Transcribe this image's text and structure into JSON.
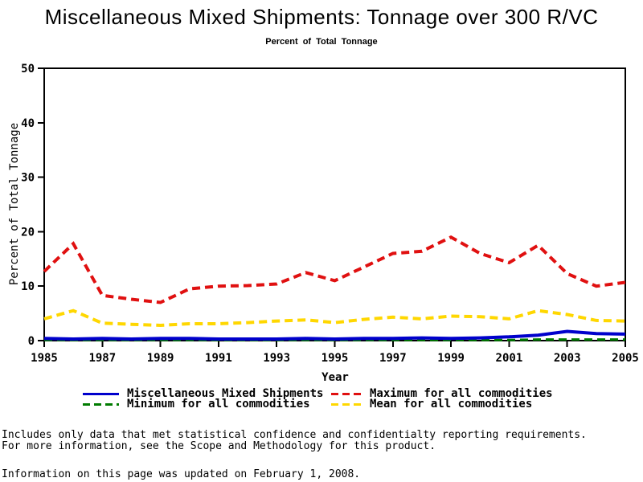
{
  "page": {
    "background": "#FFFFFF",
    "text_color": "#000000"
  },
  "chart_data": {
    "type": "line",
    "title": "Miscellaneous Mixed Shipments: Tonnage over 300 R/VC",
    "subtitle": "Percent of Total Tonnage",
    "xlabel": "Year",
    "ylabel": "Percent of Total Tonnage",
    "xlim": [
      1985,
      2005
    ],
    "ylim": [
      0,
      50
    ],
    "grid": false,
    "legend_position": "bottom",
    "x": [
      1985,
      1986,
      1987,
      1988,
      1989,
      1990,
      1991,
      1992,
      1993,
      1994,
      1995,
      1996,
      1997,
      1998,
      1999,
      2000,
      2001,
      2002,
      2003,
      2004,
      2005
    ],
    "xticks": [
      1985,
      1987,
      1989,
      1991,
      1993,
      1995,
      1997,
      1999,
      2001,
      2003,
      2005
    ],
    "yticks": [
      0,
      10,
      20,
      30,
      40,
      50
    ],
    "series": [
      {
        "name": "Maximum for all commodities",
        "color": "#E01010",
        "style": "dashed",
        "width": 4,
        "values": [
          12.7,
          17.8,
          8.3,
          7.6,
          7.0,
          9.5,
          10.0,
          10.1,
          10.4,
          12.5,
          11.0,
          13.5,
          16.0,
          16.4,
          19.0,
          16.0,
          14.3,
          17.5,
          12.3,
          10.0,
          10.7
        ]
      },
      {
        "name": "Mean for all commodities",
        "color": "#FFD700",
        "style": "dashed",
        "width": 4,
        "values": [
          4.0,
          5.5,
          3.2,
          3.0,
          2.8,
          3.1,
          3.1,
          3.3,
          3.6,
          3.8,
          3.3,
          3.9,
          4.3,
          4.0,
          4.5,
          4.4,
          4.0,
          5.5,
          4.8,
          3.7,
          3.6
        ]
      },
      {
        "name": "Minimum for all commodities",
        "color": "#007B00",
        "style": "dashed",
        "width": 3,
        "values": [
          0.1,
          0.1,
          0.1,
          0.1,
          0.1,
          0.1,
          0.1,
          0.1,
          0.1,
          0.1,
          0.1,
          0.1,
          0.1,
          0.1,
          0.1,
          0.1,
          0.1,
          0.2,
          0.2,
          0.2,
          0.2
        ]
      },
      {
        "name": "Miscellaneous Mixed Shipments",
        "color": "#0000CC",
        "style": "solid",
        "width": 4,
        "values": [
          0.4,
          0.3,
          0.4,
          0.3,
          0.4,
          0.4,
          0.3,
          0.3,
          0.3,
          0.4,
          0.3,
          0.4,
          0.4,
          0.5,
          0.4,
          0.5,
          0.7,
          1.0,
          1.7,
          1.3,
          1.2
        ]
      }
    ],
    "legend": {
      "items": [
        {
          "label": "Miscellaneous Mixed Shipments",
          "color": "#0000CC",
          "style": "solid"
        },
        {
          "label": "Maximum for all commodities",
          "color": "#E01010",
          "style": "dashed"
        },
        {
          "label": "Minimum for all commodities",
          "color": "#007B00",
          "style": "dashed"
        },
        {
          "label": "Mean for all commodities",
          "color": "#FFD700",
          "style": "dashed"
        }
      ]
    }
  },
  "footer": {
    "line1": "Includes only data that met statistical confidence and confidentialty reporting requirements.",
    "line2": "For more information, see the Scope and Methodology for this product.",
    "line3": "Information on this page was updated on February 1, 2008."
  }
}
